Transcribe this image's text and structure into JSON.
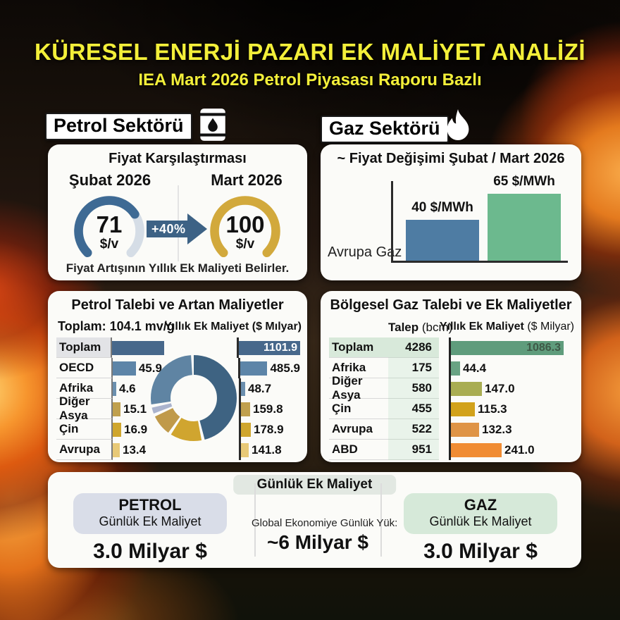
{
  "header": {
    "title": "KÜRESEL ENERJİ PAZARI EK MALİYET ANALİZİ",
    "subtitle": "IEA Mart 2026 Petrol Piyasası Raporu Bazlı"
  },
  "sections": {
    "petrol_label": "Petrol Sektörü",
    "gaz_label": "Gaz Sektörü",
    "icons": {
      "petrol": "oil-barrel-icon",
      "gaz": "flame-icon"
    }
  },
  "price_comparison": {
    "title": "Fiyat Karşılaştırması",
    "before_label": "Şubat 2026",
    "before_value": "71",
    "before_unit": "$/v",
    "before_pct": 71,
    "after_label": "Mart 2026",
    "after_value": "100",
    "after_unit": "$/v",
    "after_pct": 100,
    "change_label": "+40%",
    "caption": "Fiyat Artışının Yıllık Ek Maliyeti Belirler.",
    "colors": {
      "before_arc": "#3e6a94",
      "track": "#d5dde6",
      "after_arc": "#d2a93c",
      "arrow": "#3d6285"
    }
  },
  "gas_panel_headers": {
    "talep_bold": "Talep",
    "talep_unit": " (bcm)",
    "cost_bold": "Yıllık Ek Maliyet",
    "cost_unit": " ($ Milyar)"
  },
  "daily_panel": {
    "pill": "Günlük Ek Maliyet",
    "petrol_title": "PETROL",
    "petrol_subtitle": "Günlük Ek Maliyet",
    "petrol_value": "3.0 Milyar $",
    "center_label": "Global Ekonomiye Günlük Yük:",
    "center_value": "~6 Milyar $",
    "gaz_title": "GAZ",
    "gaz_subtitle": "Günlük Ek Maliyet",
    "gaz_value": "3.0 Milyar $"
  },
  "chart_data": [
    {
      "id": "gas-price-change",
      "type": "bar",
      "title": "~ Fiyat Değişimi Şubat / Mart 2026",
      "row_label": "Avrupa Gaz",
      "categories": [
        "Şubat 2026",
        "Mart 2026"
      ],
      "values": [
        40,
        65
      ],
      "value_labels": [
        "40 $/MWh",
        "65 $/MWh"
      ],
      "colors": [
        "#4e7ca3",
        "#6cb98e"
      ],
      "unit": "$/MWh",
      "ylim": [
        0,
        70
      ],
      "legend_position": "none",
      "grid": false
    },
    {
      "id": "oil-demand-costs",
      "type": "bar",
      "title": "Petrol Talebi ve Artan Maliyetler",
      "total_note": "Toplam: 104.1 mv/g",
      "categories": [
        "Toplam",
        "OECD",
        "Afrika",
        "Diğer Asya",
        "Çin",
        "Avrupa"
      ],
      "series": [
        {
          "name": "Talep (mv/g)",
          "values": [
            104.1,
            45.9,
            4.6,
            15.1,
            16.9,
            13.4
          ],
          "value_labels": [
            "",
            "45.9",
            "4.6",
            "15.1",
            "16.9",
            "13.4"
          ]
        },
        {
          "name": "Yıllık Ek Maliyet ($ Mılyar)",
          "values": [
            1101.9,
            485.9,
            48.7,
            159.8,
            178.9,
            141.8
          ],
          "value_labels": [
            "1101.9",
            "485.9",
            "48.7",
            "159.8",
            "178.9",
            "141.8"
          ]
        }
      ],
      "row_colors": [
        "#47688b",
        "#5d85a8",
        "#6b8fae",
        "#c0a04e",
        "#cfa62e",
        "#e8c977"
      ],
      "donut": {
        "segments": [
          {
            "label": "OECD",
            "frac": 0.47,
            "color": "#3e6382"
          },
          {
            "label": "Çin",
            "frac": 0.13,
            "color": "#d0a52f"
          },
          {
            "label": "Diğer Asya",
            "frac": 0.09,
            "color": "#c09a4a"
          },
          {
            "label": "Afrika",
            "frac": 0.035,
            "color": "#aab3cd"
          },
          {
            "label": "Diğer",
            "frac": 0.275,
            "color": "#5f84a3"
          }
        ]
      }
    },
    {
      "id": "gas-demand-costs",
      "type": "bar",
      "title": "Bölgesel Gaz Talebi ve Ek Maliyetler",
      "categories": [
        "Toplam",
        "Afrika",
        "Diğer Asya",
        "Çin",
        "Avrupa",
        "ABD"
      ],
      "series": [
        {
          "name": "Talep (bcm)",
          "values": [
            4286,
            175,
            580,
            455,
            522,
            951
          ],
          "value_labels": [
            "4286",
            "175",
            "580",
            "455",
            "522",
            "951"
          ]
        },
        {
          "name": "Yıllık Ek Maliyet ($ Milyar)",
          "values": [
            1086.3,
            44.4,
            147.0,
            115.3,
            132.3,
            241.0
          ],
          "value_labels": [
            "1086.3",
            "44.4",
            "147.0",
            "115.3",
            "132.3",
            "241.0"
          ]
        }
      ],
      "row_colors": [
        "#5f9c7c",
        "#69a383",
        "#a9ad52",
        "#d2a21b",
        "#df9446",
        "#f08c33"
      ]
    }
  ]
}
